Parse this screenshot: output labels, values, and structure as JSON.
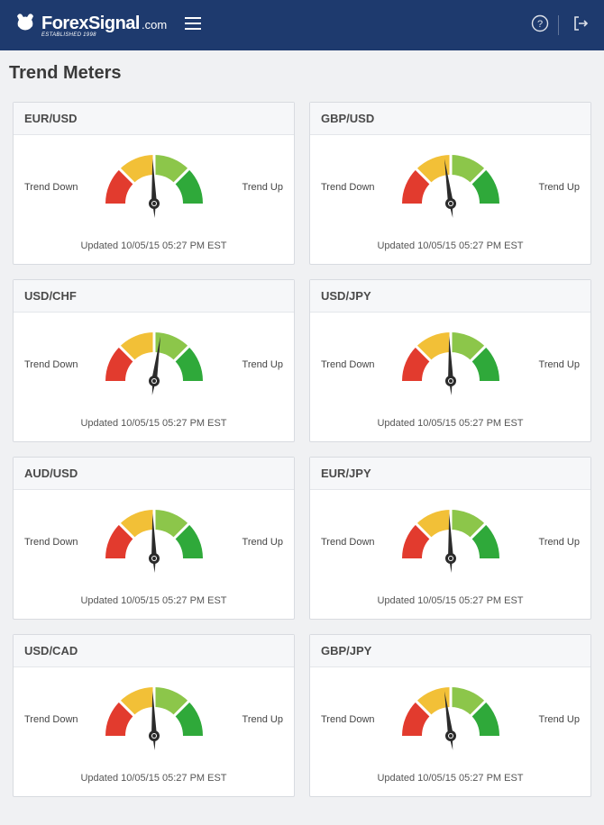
{
  "header": {
    "brand_main": "ForexSignal",
    "brand_suffix": ".com",
    "brand_tagline": "ESTABLISHED 1998"
  },
  "page": {
    "title": "Trend Meters",
    "label_down": "Trend Down",
    "label_up": "Trend Up"
  },
  "gauge_style": {
    "colors": {
      "red": "#e23b2e",
      "yellow": "#f2c037",
      "lightgreen": "#8cc64a",
      "green": "#2fa93a",
      "needle": "#2b2b2b",
      "separator": "#ffffff",
      "background": "#ffffff"
    }
  },
  "meters": [
    {
      "pair": "EUR/USD",
      "angle": -2,
      "updated": "Updated 10/05/15 05:27 PM EST"
    },
    {
      "pair": "GBP/USD",
      "angle": -8,
      "updated": "Updated 10/05/15 05:27 PM EST"
    },
    {
      "pair": "USD/CHF",
      "angle": 8,
      "updated": "Updated 10/05/15 05:27 PM EST"
    },
    {
      "pair": "USD/JPY",
      "angle": -2,
      "updated": "Updated 10/05/15 05:27 PM EST"
    },
    {
      "pair": "AUD/USD",
      "angle": -2,
      "updated": "Updated 10/05/15 05:27 PM EST"
    },
    {
      "pair": "EUR/JPY",
      "angle": -2,
      "updated": "Updated 10/05/15 05:27 PM EST"
    },
    {
      "pair": "USD/CAD",
      "angle": -2,
      "updated": "Updated 10/05/15 05:27 PM EST"
    },
    {
      "pair": "GBP/JPY",
      "angle": -8,
      "updated": "Updated 10/05/15 05:27 PM EST"
    }
  ]
}
